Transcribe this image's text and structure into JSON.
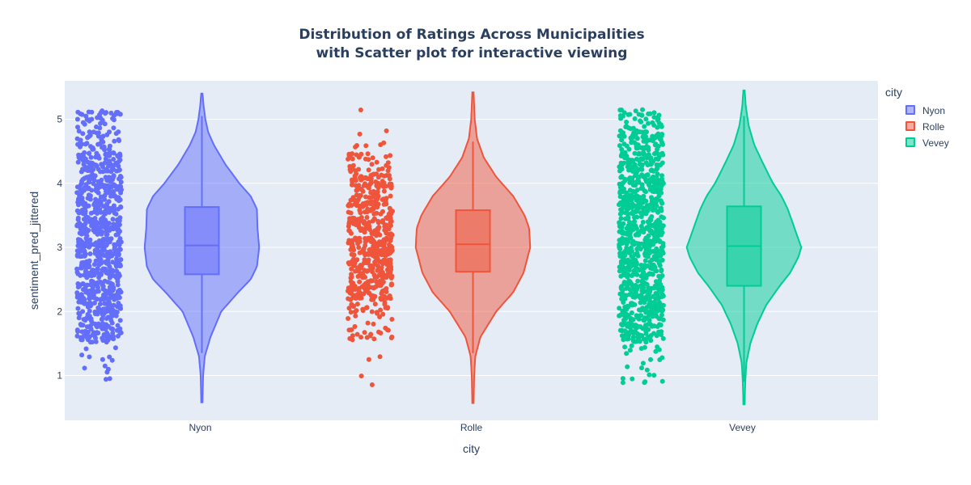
{
  "title_line1": "Distribution of Ratings Across Municipalities",
  "title_line2": "with Scatter plot for interactive viewing",
  "legend": {
    "title": "city",
    "items": [
      {
        "label": "Nyon",
        "color": "#636efa"
      },
      {
        "label": "Rolle",
        "color": "#ef553b"
      },
      {
        "label": "Vevey",
        "color": "#00cc96"
      }
    ]
  },
  "chart_data": {
    "type": "violin",
    "xlabel": "city",
    "ylabel": "sentiment_pred_jittered",
    "categories": [
      "Nyon",
      "Rolle",
      "Vevey"
    ],
    "ylim": [
      0.3,
      5.6
    ],
    "yticks": [
      1,
      2,
      3,
      4,
      5
    ],
    "grid": true,
    "legend_placement": "top-right",
    "colors": [
      "#636efa",
      "#ef553b",
      "#00cc96"
    ],
    "series": [
      {
        "name": "Nyon",
        "box": {
          "q1": 2.58,
          "median": 3.03,
          "q3": 3.63,
          "lower_fence": 1.35,
          "upper_fence": 5.05
        },
        "min": 0.58,
        "max": 5.4,
        "density": [
          [
            0.58,
            0.0
          ],
          [
            1.0,
            0.01
          ],
          [
            1.3,
            0.04
          ],
          [
            1.6,
            0.14
          ],
          [
            2.0,
            0.33
          ],
          [
            2.3,
            0.63
          ],
          [
            2.5,
            0.85
          ],
          [
            2.7,
            0.96
          ],
          [
            3.0,
            1.0
          ],
          [
            3.3,
            0.97
          ],
          [
            3.6,
            0.96
          ],
          [
            3.8,
            0.85
          ],
          [
            4.0,
            0.65
          ],
          [
            4.3,
            0.4
          ],
          [
            4.6,
            0.2
          ],
          [
            4.8,
            0.1
          ],
          [
            5.0,
            0.05
          ],
          [
            5.2,
            0.02
          ],
          [
            5.4,
            0.0
          ]
        ],
        "point_levels": [
          [
            1.0,
            0.05
          ],
          [
            1.33,
            0.06
          ],
          [
            1.67,
            0.7
          ],
          [
            2.0,
            0.7
          ],
          [
            2.33,
            0.9
          ],
          [
            2.67,
            0.9
          ],
          [
            3.0,
            1.0
          ],
          [
            3.33,
            0.9
          ],
          [
            3.67,
            0.9
          ],
          [
            4.0,
            0.85
          ],
          [
            4.33,
            0.8
          ],
          [
            4.67,
            0.4
          ],
          [
            5.0,
            0.35
          ]
        ]
      },
      {
        "name": "Rolle",
        "box": {
          "q1": 2.62,
          "median": 3.05,
          "q3": 3.58,
          "lower_fence": 1.35,
          "upper_fence": 4.65
        },
        "min": 0.57,
        "max": 5.42,
        "density": [
          [
            0.57,
            0.0
          ],
          [
            1.0,
            0.01
          ],
          [
            1.3,
            0.03
          ],
          [
            1.6,
            0.12
          ],
          [
            2.0,
            0.4
          ],
          [
            2.3,
            0.7
          ],
          [
            2.6,
            0.88
          ],
          [
            3.0,
            1.0
          ],
          [
            3.3,
            0.98
          ],
          [
            3.5,
            0.9
          ],
          [
            3.8,
            0.7
          ],
          [
            4.1,
            0.4
          ],
          [
            4.4,
            0.18
          ],
          [
            4.7,
            0.06
          ],
          [
            5.0,
            0.02
          ],
          [
            5.42,
            0.0
          ]
        ],
        "point_levels": [
          [
            1.0,
            0.02
          ],
          [
            1.33,
            0.02
          ],
          [
            1.67,
            0.2
          ],
          [
            2.0,
            0.25
          ],
          [
            2.33,
            0.8
          ],
          [
            2.67,
            0.8
          ],
          [
            3.0,
            1.0
          ],
          [
            3.33,
            0.75
          ],
          [
            3.67,
            0.7
          ],
          [
            4.0,
            0.6
          ],
          [
            4.33,
            0.3
          ],
          [
            4.67,
            0.06
          ],
          [
            5.0,
            0.01
          ]
        ]
      },
      {
        "name": "Vevey",
        "box": {
          "q1": 2.4,
          "median": 3.02,
          "q3": 3.64,
          "lower_fence": 0.9,
          "upper_fence": 5.05
        },
        "min": 0.55,
        "max": 5.45,
        "density": [
          [
            0.55,
            0.0
          ],
          [
            0.9,
            0.01
          ],
          [
            1.2,
            0.03
          ],
          [
            1.5,
            0.1
          ],
          [
            1.8,
            0.22
          ],
          [
            2.1,
            0.38
          ],
          [
            2.4,
            0.62
          ],
          [
            2.6,
            0.8
          ],
          [
            2.85,
            0.95
          ],
          [
            3.0,
            1.0
          ],
          [
            3.3,
            0.88
          ],
          [
            3.6,
            0.76
          ],
          [
            3.8,
            0.65
          ],
          [
            4.0,
            0.5
          ],
          [
            4.3,
            0.33
          ],
          [
            4.6,
            0.17
          ],
          [
            4.9,
            0.07
          ],
          [
            5.2,
            0.02
          ],
          [
            5.45,
            0.0
          ]
        ],
        "point_levels": [
          [
            1.0,
            0.1
          ],
          [
            1.33,
            0.12
          ],
          [
            1.67,
            0.7
          ],
          [
            2.0,
            0.8
          ],
          [
            2.33,
            0.9
          ],
          [
            2.67,
            0.9
          ],
          [
            3.0,
            1.0
          ],
          [
            3.33,
            0.9
          ],
          [
            3.67,
            0.9
          ],
          [
            4.0,
            0.85
          ],
          [
            4.33,
            0.85
          ],
          [
            4.67,
            0.6
          ],
          [
            5.0,
            0.35
          ]
        ]
      }
    ]
  }
}
